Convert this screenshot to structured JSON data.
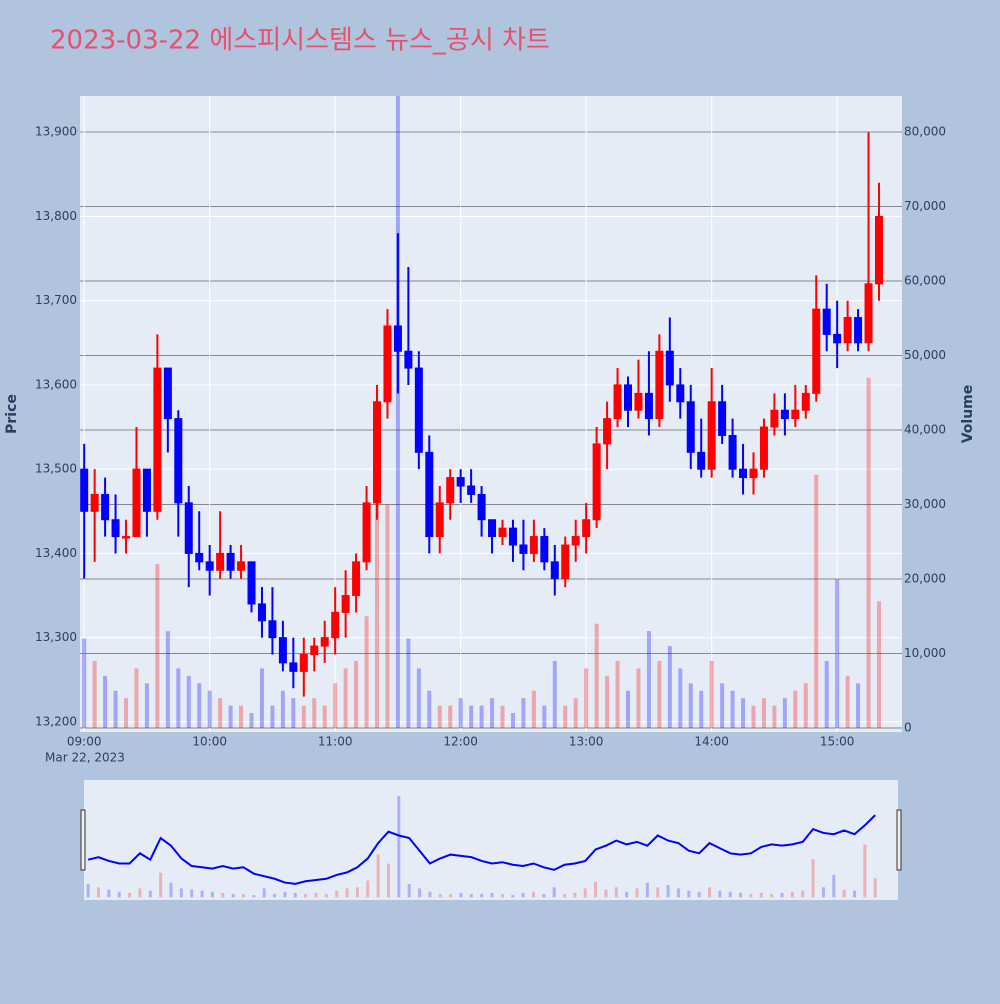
{
  "chart_data": {
    "type": "candlestick",
    "title": "2023-03-22 에스피시스템스 뉴스_공시 차트",
    "y_label": "Price",
    "y2_label": "Volume",
    "date_label": "Mar 22, 2023",
    "up_color": "#ff0000",
    "down_color": "#0000ff",
    "x": [
      "09:00",
      "09:05",
      "09:10",
      "09:15",
      "09:20",
      "09:25",
      "09:30",
      "09:35",
      "09:40",
      "09:45",
      "09:50",
      "09:55",
      "10:00",
      "10:05",
      "10:10",
      "10:15",
      "10:20",
      "10:25",
      "10:30",
      "10:35",
      "10:40",
      "10:45",
      "10:50",
      "10:55",
      "11:00",
      "11:05",
      "11:10",
      "11:15",
      "11:20",
      "11:25",
      "11:30",
      "11:35",
      "11:40",
      "11:45",
      "11:50",
      "11:55",
      "12:00",
      "12:05",
      "12:10",
      "12:15",
      "12:20",
      "12:25",
      "12:30",
      "12:35",
      "12:40",
      "12:45",
      "12:50",
      "12:55",
      "13:00",
      "13:05",
      "13:10",
      "13:15",
      "13:20",
      "13:25",
      "13:30",
      "13:35",
      "13:40",
      "13:45",
      "13:50",
      "13:55",
      "14:00",
      "14:05",
      "14:10",
      "14:15",
      "14:20",
      "14:25",
      "14:30",
      "14:35",
      "14:40",
      "14:45",
      "14:50",
      "14:55",
      "15:00",
      "15:05",
      "15:10",
      "15:15",
      "15:20"
    ],
    "open": [
      13500,
      13450,
      13470,
      13440,
      13420,
      13420,
      13500,
      13450,
      13620,
      13560,
      13460,
      13400,
      13390,
      13380,
      13400,
      13380,
      13390,
      13340,
      13320,
      13300,
      13270,
      13260,
      13280,
      13290,
      13300,
      13330,
      13350,
      13390,
      13460,
      13580,
      13670,
      13640,
      13620,
      13520,
      13420,
      13460,
      13490,
      13480,
      13470,
      13440,
      13420,
      13430,
      13410,
      13400,
      13420,
      13390,
      13370,
      13410,
      13420,
      13440,
      13530,
      13560,
      13600,
      13570,
      13590,
      13560,
      13640,
      13600,
      13580,
      13520,
      13500,
      13580,
      13540,
      13500,
      13490,
      13500,
      13550,
      13570,
      13560,
      13570,
      13590,
      13690,
      13660,
      13650,
      13680,
      13650,
      13720
    ],
    "high": [
      13530,
      13500,
      13490,
      13470,
      13440,
      13550,
      13500,
      13660,
      13620,
      13570,
      13480,
      13450,
      13410,
      13450,
      13410,
      13410,
      13390,
      13360,
      13360,
      13320,
      13300,
      13300,
      13300,
      13320,
      13360,
      13380,
      13400,
      13480,
      13600,
      13690,
      13780,
      13740,
      13640,
      13540,
      13480,
      13500,
      13500,
      13500,
      13480,
      13440,
      13440,
      13440,
      13440,
      13440,
      13430,
      13410,
      13420,
      13440,
      13460,
      13550,
      13580,
      13620,
      13610,
      13630,
      13640,
      13660,
      13680,
      13620,
      13600,
      13560,
      13620,
      13600,
      13560,
      13530,
      13520,
      13560,
      13590,
      13590,
      13600,
      13600,
      13730,
      13720,
      13700,
      13700,
      13690,
      13900,
      13840
    ],
    "low": [
      13370,
      13390,
      13420,
      13400,
      13400,
      13420,
      13420,
      13440,
      13520,
      13420,
      13360,
      13380,
      13350,
      13370,
      13370,
      13370,
      13330,
      13300,
      13280,
      13260,
      13240,
      13230,
      13260,
      13270,
      13280,
      13300,
      13330,
      13380,
      13440,
      13560,
      13590,
      13600,
      13500,
      13400,
      13400,
      13440,
      13460,
      13460,
      13420,
      13400,
      13410,
      13390,
      13380,
      13390,
      13380,
      13350,
      13360,
      13390,
      13400,
      13430,
      13500,
      13550,
      13550,
      13560,
      13540,
      13550,
      13580,
      13560,
      13500,
      13490,
      13490,
      13530,
      13490,
      13470,
      13470,
      13490,
      13540,
      13540,
      13550,
      13560,
      13580,
      13640,
      13620,
      13640,
      13640,
      13640,
      13700
    ],
    "close": [
      13450,
      13470,
      13440,
      13420,
      13420,
      13500,
      13450,
      13620,
      13560,
      13460,
      13400,
      13390,
      13380,
      13400,
      13380,
      13390,
      13340,
      13320,
      13300,
      13270,
      13260,
      13280,
      13290,
      13300,
      13330,
      13350,
      13390,
      13460,
      13580,
      13670,
      13640,
      13620,
      13520,
      13420,
      13460,
      13490,
      13480,
      13470,
      13440,
      13420,
      13430,
      13410,
      13400,
      13420,
      13390,
      13370,
      13410,
      13420,
      13440,
      13530,
      13560,
      13600,
      13570,
      13590,
      13560,
      13640,
      13600,
      13580,
      13520,
      13500,
      13580,
      13540,
      13500,
      13490,
      13500,
      13550,
      13570,
      13560,
      13570,
      13590,
      13690,
      13660,
      13650,
      13680,
      13650,
      13720,
      13800
    ],
    "volume": [
      12000,
      9000,
      7000,
      5000,
      4000,
      8000,
      6000,
      22000,
      13000,
      8000,
      7000,
      6000,
      5000,
      4000,
      3000,
      3000,
      2000,
      8000,
      3000,
      5000,
      4000,
      3000,
      4000,
      3000,
      6000,
      8000,
      9000,
      15000,
      38000,
      30000,
      90000,
      12000,
      8000,
      5000,
      3000,
      3000,
      4000,
      3000,
      3000,
      4000,
      3000,
      2000,
      4000,
      5000,
      3000,
      9000,
      3000,
      4000,
      8000,
      14000,
      7000,
      9000,
      5000,
      8000,
      13000,
      9000,
      11000,
      8000,
      6000,
      5000,
      9000,
      6000,
      5000,
      4000,
      3000,
      4000,
      3000,
      4000,
      5000,
      6000,
      34000,
      9000,
      20000,
      7000,
      6000,
      47000,
      17000
    ],
    "xlim": [
      "08:58",
      "15:31"
    ],
    "xticks": [
      "09:00",
      "10:00",
      "11:00",
      "12:00",
      "13:00",
      "14:00",
      "15:00"
    ],
    "ylim": [
      13188,
      13943
    ],
    "yticks": [
      {
        "value": 13200,
        "label": "13,200"
      },
      {
        "value": 13300,
        "label": "13,300"
      },
      {
        "value": 13400,
        "label": "13,400"
      },
      {
        "value": 13500,
        "label": "13,500"
      },
      {
        "value": 13600,
        "label": "13,600"
      },
      {
        "value": 13700,
        "label": "13,700"
      },
      {
        "value": 13800,
        "label": "13,800"
      },
      {
        "value": 13900,
        "label": "13,900"
      }
    ],
    "y2lim": [
      -540,
      84830
    ],
    "y2ticks": [
      0,
      {
        "value": 10000,
        "label": "10,000"
      },
      {
        "value": 20000,
        "label": "20,000"
      },
      {
        "value": 30000,
        "label": "30,000"
      },
      {
        "value": 40000,
        "label": "40,000"
      },
      {
        "value": 50000,
        "label": "50,000"
      },
      {
        "value": 60000,
        "label": "60,000"
      },
      {
        "value": 70000,
        "label": "70,000"
      },
      {
        "value": 80000,
        "label": "80,000"
      }
    ]
  }
}
